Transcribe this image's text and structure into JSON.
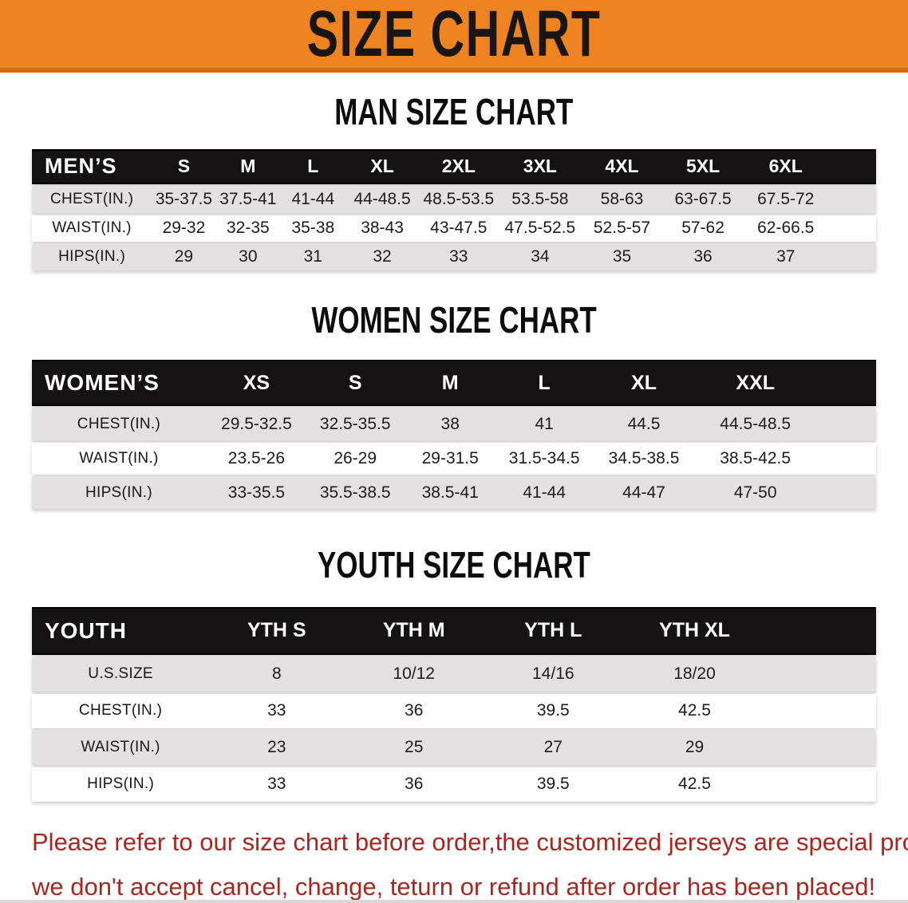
{
  "banner": {
    "title": "SIZE CHART"
  },
  "theme": {
    "banner_bg": "#ee8421",
    "banner_edge": "#cf6d12",
    "header_bg": "#151213",
    "row_gray": "#e2e0e1",
    "footer_red": "#a8261e"
  },
  "sections": [
    {
      "id": "men",
      "title": "MAN SIZE CHART",
      "label": "MEN’S",
      "sizes": [
        "S",
        "M",
        "L",
        "XL",
        "2XL",
        "3XL",
        "4XL",
        "5XL",
        "6XL"
      ],
      "rows": [
        {
          "label": "CHEST(IN.)",
          "values": [
            "35-37.5",
            "37.5-41",
            "41-44",
            "44-48.5",
            "48.5-53.5",
            "53.5-58",
            "58-63",
            "63-67.5",
            "67.5-72"
          ]
        },
        {
          "label": "WAIST(IN.)",
          "values": [
            "29-32",
            "32-35",
            "35-38",
            "38-43",
            "43-47.5",
            "47.5-52.5",
            "52.5-57",
            "57-62",
            "62-66.5"
          ]
        },
        {
          "label": "HIPS(IN.)",
          "values": [
            "29",
            "30",
            "31",
            "32",
            "33",
            "34",
            "35",
            "36",
            "37"
          ]
        }
      ]
    },
    {
      "id": "women",
      "title": "WOMEN SIZE CHART",
      "label": "WOMEN’S",
      "sizes": [
        "XS",
        "S",
        "M",
        "L",
        "XL",
        "XXL"
      ],
      "rows": [
        {
          "label": "CHEST(IN.)",
          "values": [
            "29.5-32.5",
            "32.5-35.5",
            "38",
            "41",
            "44.5",
            "44.5-48.5"
          ]
        },
        {
          "label": "WAIST(IN.)",
          "values": [
            "23.5-26",
            "26-29",
            "29-31.5",
            "31.5-34.5",
            "34.5-38.5",
            "38.5-42.5"
          ]
        },
        {
          "label": "HIPS(IN.)",
          "values": [
            "33-35.5",
            "35.5-38.5",
            "38.5-41",
            "41-44",
            "44-47",
            "47-50"
          ]
        }
      ]
    },
    {
      "id": "youth",
      "title": "YOUTH SIZE CHART",
      "label": "YOUTH",
      "sizes": [
        "YTH S",
        "YTH M",
        "YTH L",
        "YTH XL"
      ],
      "rows": [
        {
          "label": "U.S.SIZE",
          "values": [
            "8",
            "10/12",
            "14/16",
            "18/20"
          ]
        },
        {
          "label": "CHEST(IN.)",
          "values": [
            "33",
            "36",
            "39.5",
            "42.5"
          ]
        },
        {
          "label": "WAIST(IN.)",
          "values": [
            "23",
            "25",
            "27",
            "29"
          ]
        },
        {
          "label": "HIPS(IN.)",
          "values": [
            "33",
            "36",
            "39.5",
            "42.5"
          ]
        }
      ]
    }
  ],
  "footer": {
    "line1": "Please refer to our size chart before order,the customized jerseys are special products,",
    "line2": "we don't accept cancel, change, teturn or refund after order has been placed!"
  }
}
